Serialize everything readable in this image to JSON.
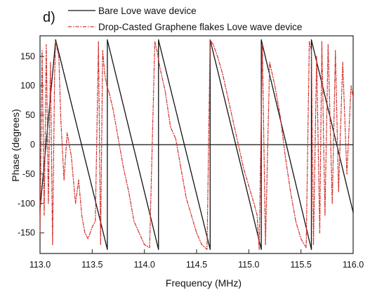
{
  "chart_data": {
    "type": "line",
    "panel_label": "d)",
    "title": "",
    "xlabel": "Frequency (MHz)",
    "ylabel": "Phase (degrees)",
    "xlim": [
      113.0,
      116.0
    ],
    "ylim": [
      -185,
      185
    ],
    "xticks": [
      113.0,
      113.5,
      114.0,
      114.5,
      115.0,
      115.5,
      116.0
    ],
    "xtick_labels": [
      "113.0",
      "113.5",
      "114.0",
      "114.5",
      "115.0",
      "115.5",
      "116.0"
    ],
    "yticks": [
      150,
      100,
      50,
      0,
      -50,
      -100,
      -150
    ],
    "ytick_labels": [
      "150",
      "100",
      "50",
      "0",
      "-50",
      "-100",
      "-150"
    ],
    "legend_position": "top",
    "grid": false,
    "series": [
      {
        "name": "Bare Love wave device",
        "color": "#111111",
        "style": "solid",
        "x": [
          113.0,
          113.15,
          113.15,
          113.645,
          113.645,
          114.135,
          114.135,
          114.63,
          114.63,
          115.12,
          115.12,
          115.6,
          115.6,
          116.0
        ],
        "y": [
          -110,
          178,
          178,
          -178,
          178,
          -178,
          178,
          -178,
          178,
          -178,
          178,
          -178,
          178,
          -115
        ]
      },
      {
        "name": "Drop-Casted Graphene flakes Love wave device",
        "color": "#d0312d",
        "style": "dash-dot",
        "x": [
          113.0,
          113.02,
          113.04,
          113.06,
          113.08,
          113.1,
          113.12,
          113.14,
          113.15,
          113.18,
          113.2,
          113.23,
          113.26,
          113.3,
          113.34,
          113.37,
          113.4,
          113.43,
          113.46,
          113.5,
          113.53,
          113.56,
          113.58,
          113.6,
          113.62,
          113.64,
          113.66,
          113.7,
          113.75,
          113.8,
          113.85,
          113.9,
          113.95,
          114.0,
          114.05,
          114.1,
          114.12,
          114.15,
          114.2,
          114.25,
          114.3,
          114.35,
          114.4,
          114.45,
          114.5,
          114.55,
          114.6,
          114.63,
          114.66,
          114.7,
          114.75,
          114.8,
          114.85,
          114.9,
          114.95,
          115.0,
          115.05,
          115.08,
          115.1,
          115.13,
          115.16,
          115.2,
          115.25,
          115.3,
          115.35,
          115.4,
          115.45,
          115.5,
          115.55,
          115.58,
          115.6,
          115.62,
          115.65,
          115.68,
          115.7,
          115.73,
          115.76,
          115.8,
          115.83,
          115.86,
          115.9,
          115.94,
          115.98,
          116.0
        ],
        "y": [
          -150,
          160,
          -120,
          170,
          -100,
          140,
          -170,
          120,
          175,
          150,
          40,
          -60,
          20,
          -20,
          -100,
          -60,
          -120,
          -150,
          -160,
          -140,
          -130,
          175,
          -170,
          160,
          120,
          100,
          90,
          60,
          10,
          -40,
          -80,
          -130,
          -150,
          -170,
          -175,
          175,
          160,
          130,
          90,
          30,
          10,
          -40,
          -90,
          -120,
          -150,
          -170,
          -178,
          178,
          170,
          150,
          120,
          80,
          40,
          0,
          -40,
          -70,
          -100,
          -120,
          -178,
          170,
          -170,
          140,
          100,
          50,
          -20,
          -80,
          -130,
          -160,
          -175,
          175,
          160,
          -170,
          150,
          -150,
          175,
          -120,
          170,
          -100,
          160,
          -80,
          140,
          -50,
          100,
          80
        ]
      }
    ]
  }
}
